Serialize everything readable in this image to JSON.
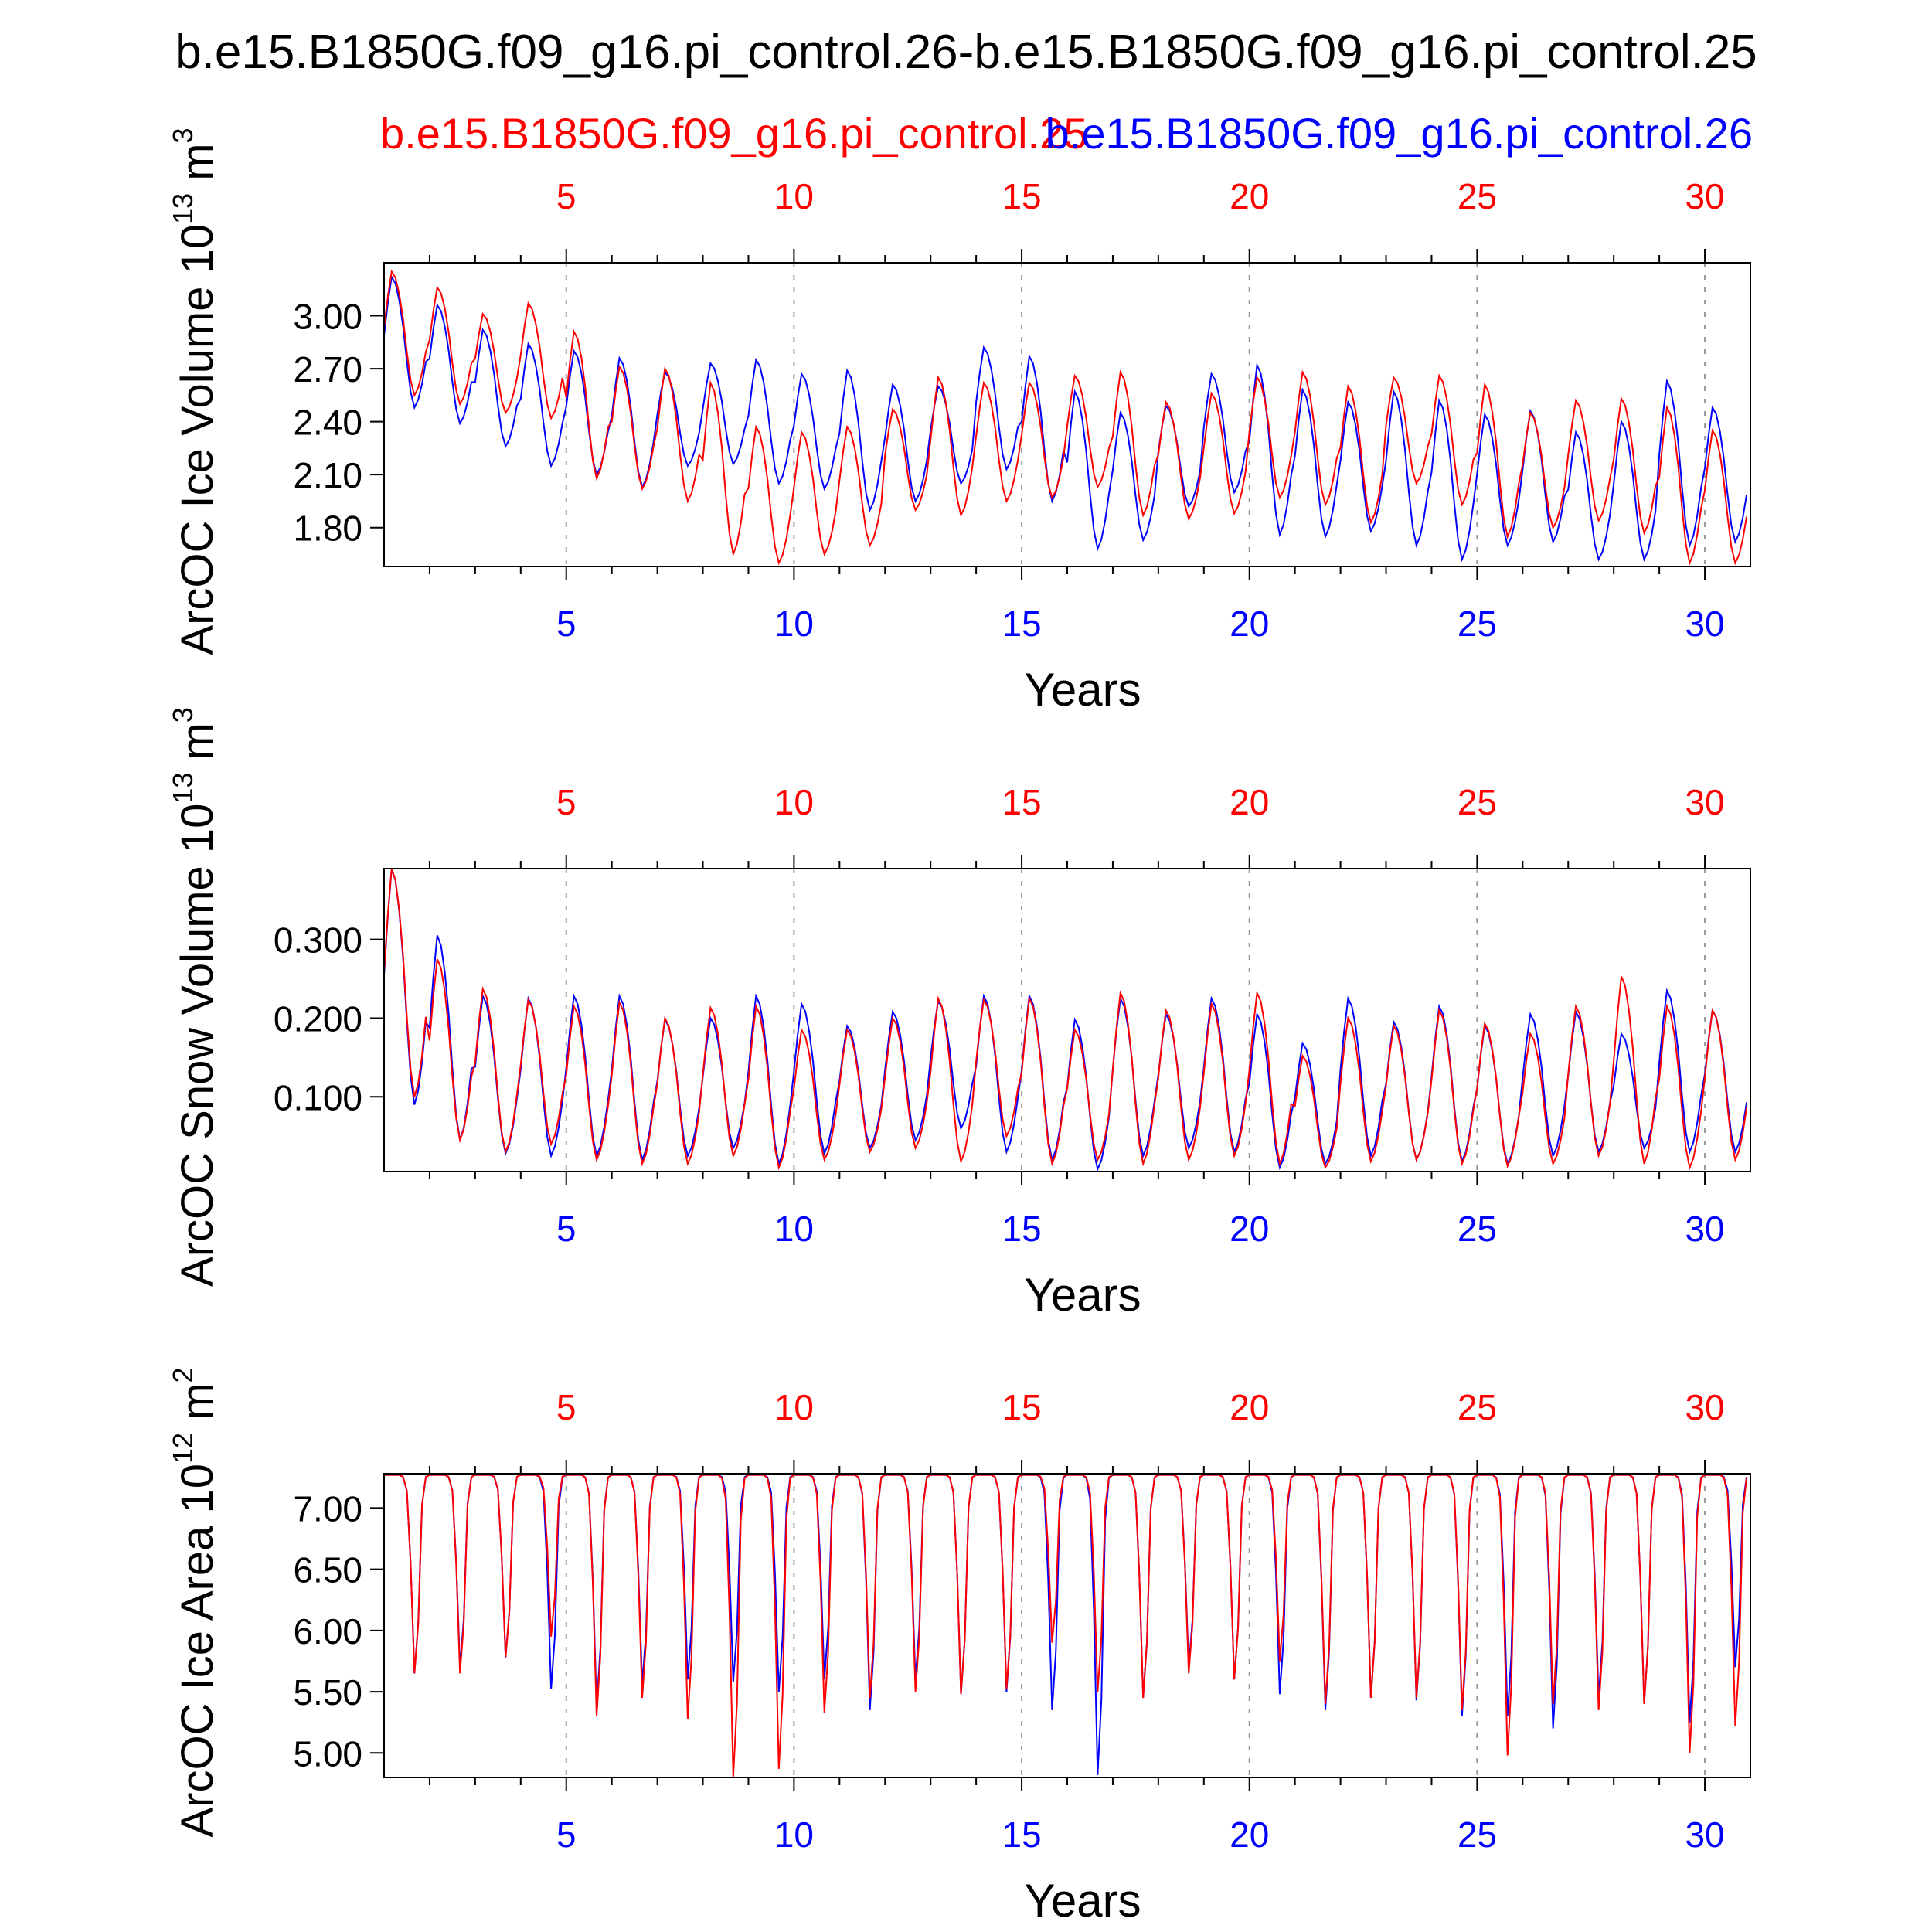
{
  "figure_title": "b.e15.B1850G.f09_g16.pi_control.26-b.e15.B1850G.f09_g16.pi_control.25",
  "legend": {
    "case_a": {
      "label": "b.e15.B1850G.f09_g16.pi_control.25",
      "color": "#ff0000"
    },
    "case_b": {
      "label": "b.e15.B1850G.f09_g16.pi_control.26",
      "color": "#0000ff"
    }
  },
  "colors": {
    "frame": "#000000",
    "grid": "#999999",
    "top_ticks": "#ff0000",
    "bottom_ticks": "#0000ff"
  },
  "chart_data": [
    {
      "type": "line",
      "ylabel_main": "ArcOC Ice Volume 10",
      "ylabel_exp": "13",
      "ylabel_unit": " m",
      "ylabel_unit_exp": "3",
      "xlabel": "Years",
      "xlim": [
        1,
        31
      ],
      "ylim": [
        1.58,
        3.3
      ],
      "yticks": [
        1.8,
        2.1,
        2.4,
        2.7,
        3.0
      ],
      "ytick_labels": [
        "1.80",
        "2.10",
        "2.40",
        "2.70",
        "3.00"
      ],
      "xticks": [
        5,
        10,
        15,
        20,
        25,
        30
      ],
      "xtick_labels": [
        "5",
        "10",
        "15",
        "20",
        "25",
        "30"
      ],
      "annual_max": {
        "pi_control.25": [
          3.25,
          3.16,
          3.01,
          3.07,
          2.91,
          2.71,
          2.7,
          2.62,
          2.37,
          2.34,
          2.37,
          2.47,
          2.65,
          2.62,
          2.62,
          2.66,
          2.68,
          2.51,
          2.56,
          2.65,
          2.68,
          2.6,
          2.65,
          2.66,
          2.61,
          2.45,
          2.52,
          2.53,
          2.48,
          2.35
        ],
        "pi_control.26": [
          3.22,
          3.06,
          2.92,
          2.84,
          2.8,
          2.76,
          2.68,
          2.73,
          2.75,
          2.67,
          2.69,
          2.61,
          2.6,
          2.82,
          2.77,
          2.57,
          2.45,
          2.49,
          2.67,
          2.72,
          2.58,
          2.51,
          2.57,
          2.52,
          2.44,
          2.46,
          2.34,
          2.4,
          2.63,
          2.48
        ]
      },
      "annual_min": {
        "pi_control.25": [
          2.55,
          2.5,
          2.45,
          2.42,
          2.08,
          2.02,
          1.95,
          1.65,
          1.6,
          1.65,
          1.7,
          1.9,
          1.87,
          1.95,
          1.97,
          2.03,
          1.87,
          1.85,
          1.88,
          1.97,
          1.93,
          1.83,
          2.05,
          1.93,
          1.75,
          1.8,
          1.84,
          1.77,
          1.6,
          1.6
        ],
        "pi_control.26": [
          2.48,
          2.39,
          2.26,
          2.15,
          2.1,
          2.03,
          2.15,
          2.16,
          2.05,
          2.02,
          1.9,
          1.95,
          2.05,
          2.13,
          1.95,
          1.68,
          1.73,
          1.92,
          2.0,
          1.76,
          1.75,
          1.78,
          1.7,
          1.62,
          1.7,
          1.72,
          1.62,
          1.62,
          1.7,
          1.72
        ]
      }
    },
    {
      "type": "line",
      "ylabel_main": "ArcOC Snow Volume 10",
      "ylabel_exp": "13",
      "ylabel_unit": " m",
      "ylabel_unit_exp": "3",
      "xlabel": "Years",
      "xlim": [
        1,
        31
      ],
      "ylim": [
        0.005,
        0.39
      ],
      "yticks": [
        0.1,
        0.2,
        0.3
      ],
      "ytick_labels": [
        "0.100",
        "0.200",
        "0.300"
      ],
      "xticks": [
        5,
        10,
        15,
        20,
        25,
        30
      ],
      "xtick_labels": [
        "5",
        "10",
        "15",
        "20",
        "25",
        "30"
      ],
      "annual_max": {
        "pi_control.25": [
          0.39,
          0.275,
          0.237,
          0.223,
          0.215,
          0.22,
          0.2,
          0.213,
          0.215,
          0.185,
          0.185,
          0.2,
          0.225,
          0.223,
          0.225,
          0.185,
          0.232,
          0.21,
          0.218,
          0.232,
          0.152,
          0.2,
          0.19,
          0.21,
          0.193,
          0.18,
          0.215,
          0.253,
          0.215,
          0.21
        ],
        "pi_control.26": [
          0.39,
          0.305,
          0.228,
          0.225,
          0.228,
          0.228,
          0.198,
          0.2,
          0.228,
          0.218,
          0.19,
          0.208,
          0.222,
          0.228,
          0.228,
          0.198,
          0.225,
          0.205,
          0.225,
          0.205,
          0.168,
          0.225,
          0.195,
          0.215,
          0.19,
          0.205,
          0.208,
          0.18,
          0.235,
          0.21
        ]
      },
      "annual_min": {
        "pi_control.25": [
          0.1,
          0.045,
          0.03,
          0.04,
          0.02,
          0.015,
          0.015,
          0.025,
          0.01,
          0.02,
          0.03,
          0.035,
          0.018,
          0.05,
          0.015,
          0.02,
          0.015,
          0.02,
          0.025,
          0.015,
          0.01,
          0.018,
          0.02,
          0.015,
          0.012,
          0.015,
          0.025,
          0.015,
          0.01,
          0.02
        ],
        "pi_control.26": [
          0.09,
          0.045,
          0.028,
          0.025,
          0.025,
          0.02,
          0.025,
          0.035,
          0.015,
          0.028,
          0.035,
          0.045,
          0.06,
          0.03,
          0.02,
          0.008,
          0.025,
          0.035,
          0.03,
          0.01,
          0.015,
          0.025,
          0.02,
          0.018,
          0.015,
          0.025,
          0.03,
          0.035,
          0.03,
          0.03
        ]
      }
    },
    {
      "type": "line",
      "ylabel_main": "ArcOC Ice Area 10",
      "ylabel_exp": "12",
      "ylabel_unit": " m",
      "ylabel_unit_exp": "2",
      "xlabel": "Years",
      "xlim": [
        1,
        31
      ],
      "ylim": [
        4.8,
        7.28
      ],
      "yticks": [
        5.0,
        5.5,
        6.0,
        6.5,
        7.0
      ],
      "ytick_labels": [
        "5.00",
        "5.50",
        "6.00",
        "6.50",
        "7.00"
      ],
      "xticks": [
        5,
        10,
        15,
        20,
        25,
        30
      ],
      "xtick_labels": [
        "5",
        "10",
        "15",
        "20",
        "25",
        "30"
      ],
      "annual_max": {
        "pi_control.25": [
          7.27,
          7.27,
          7.27,
          7.27,
          7.27,
          7.27,
          7.27,
          7.27,
          7.27,
          7.27,
          7.27,
          7.27,
          7.27,
          7.27,
          7.27,
          7.27,
          7.27,
          7.27,
          7.27,
          7.27,
          7.27,
          7.27,
          7.27,
          7.27,
          7.27,
          7.27,
          7.27,
          7.27,
          7.27,
          7.27
        ],
        "pi_control.26": [
          7.27,
          7.27,
          7.27,
          7.27,
          7.27,
          7.27,
          7.27,
          7.27,
          7.27,
          7.27,
          7.27,
          7.27,
          7.27,
          7.27,
          7.27,
          7.27,
          7.27,
          7.27,
          7.27,
          7.27,
          7.27,
          7.27,
          7.27,
          7.27,
          7.27,
          7.27,
          7.27,
          7.27,
          7.27,
          7.27
        ]
      },
      "annual_min": {
        "pi_control.25": [
          5.65,
          5.65,
          5.78,
          5.95,
          5.3,
          5.45,
          5.28,
          4.8,
          4.87,
          5.33,
          5.45,
          5.5,
          5.48,
          5.52,
          5.9,
          5.5,
          5.45,
          5.65,
          5.6,
          5.75,
          5.4,
          5.45,
          5.45,
          5.35,
          4.98,
          5.4,
          5.35,
          5.4,
          5.0,
          5.22
        ],
        "pi_control.26": [
          5.65,
          5.7,
          5.78,
          5.52,
          5.38,
          5.55,
          5.6,
          5.58,
          5.5,
          5.6,
          5.35,
          5.6,
          5.48,
          5.5,
          5.35,
          4.82,
          5.45,
          5.7,
          5.6,
          5.48,
          5.35,
          5.45,
          5.43,
          5.3,
          5.3,
          5.2,
          5.45,
          5.4,
          5.25,
          5.7
        ]
      }
    }
  ]
}
